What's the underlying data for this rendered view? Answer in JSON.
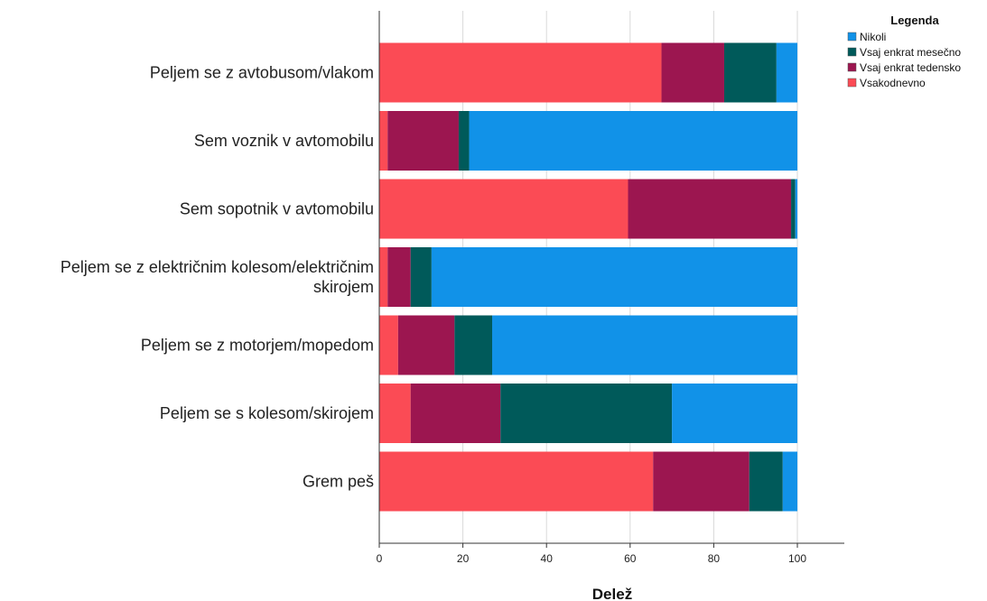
{
  "chart_data": {
    "type": "bar",
    "orientation": "horizontal",
    "stacked": true,
    "categories": [
      [
        "Peljem se z avtobusom/vlakom"
      ],
      [
        "Sem voznik v avtomobilu"
      ],
      [
        "Sem sopotnik v avtomobilu"
      ],
      [
        "Peljem se z električnim kolesom/električnim",
        "skirojem"
      ],
      [
        "Peljem se z motorjem/mopedom"
      ],
      [
        "Peljem se s kolesom/skirojem"
      ],
      [
        "Grem peš"
      ]
    ],
    "series": [
      {
        "name": "Vsakodnevno",
        "color": "#fb4b55",
        "values": [
          67.5,
          2,
          59.5,
          2,
          4.5,
          7.5,
          65.5
        ]
      },
      {
        "name": "Vsaj enkrat tedensko",
        "color": "#9c1650",
        "values": [
          15,
          17,
          39,
          5.5,
          13.5,
          21.5,
          23
        ]
      },
      {
        "name": "Vsaj enkrat mesečno",
        "color": "#005a5a",
        "values": [
          12.5,
          2.5,
          1,
          5,
          9,
          41,
          8
        ]
      },
      {
        "name": "Nikoli",
        "color": "#1192e8",
        "values": [
          5,
          78.5,
          0.5,
          87.5,
          73,
          30,
          3.5
        ]
      }
    ],
    "xlabel": "Delež",
    "ylabel": "",
    "xlim": [
      0,
      110
    ],
    "xticks": [
      0,
      20,
      40,
      60,
      80,
      100
    ],
    "grid": true,
    "legend": {
      "title": "Legenda",
      "placement": "top-right",
      "entries": [
        "Nikoli",
        "Vsaj enkrat mesečno",
        "Vsaj enkrat tedensko",
        "Vsakodnevno"
      ]
    }
  }
}
